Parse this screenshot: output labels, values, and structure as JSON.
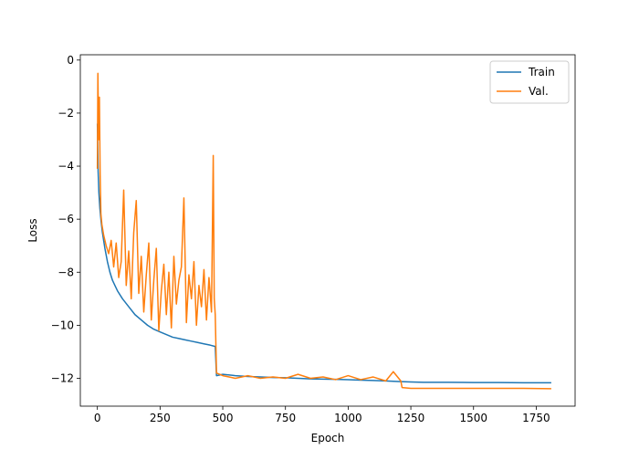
{
  "chart_data": {
    "type": "line",
    "title": "",
    "xlabel": "Epoch",
    "ylabel": "Loss",
    "xlim": [
      -68,
      1905
    ],
    "ylim": [
      -13.05,
      0.2
    ],
    "x_ticks": [
      0,
      250,
      500,
      750,
      1000,
      1250,
      1500,
      1750
    ],
    "y_ticks": [
      0,
      -2,
      -4,
      -6,
      -8,
      -10,
      -12
    ],
    "grid": false,
    "legend_position": "top-right",
    "series": [
      {
        "name": "Train",
        "color": "#1f77b4",
        "points": [
          [
            0,
            -2.4
          ],
          [
            3,
            -4.2
          ],
          [
            6,
            -5.0
          ],
          [
            10,
            -5.6
          ],
          [
            15,
            -6.1
          ],
          [
            20,
            -6.5
          ],
          [
            30,
            -7.1
          ],
          [
            40,
            -7.6
          ],
          [
            50,
            -8.0
          ],
          [
            60,
            -8.3
          ],
          [
            70,
            -8.5
          ],
          [
            80,
            -8.7
          ],
          [
            100,
            -9.0
          ],
          [
            125,
            -9.3
          ],
          [
            150,
            -9.6
          ],
          [
            175,
            -9.8
          ],
          [
            200,
            -10.0
          ],
          [
            225,
            -10.15
          ],
          [
            250,
            -10.25
          ],
          [
            275,
            -10.35
          ],
          [
            300,
            -10.45
          ],
          [
            325,
            -10.5
          ],
          [
            350,
            -10.55
          ],
          [
            375,
            -10.6
          ],
          [
            400,
            -10.65
          ],
          [
            425,
            -10.7
          ],
          [
            450,
            -10.75
          ],
          [
            470,
            -10.8
          ],
          [
            475,
            -11.9
          ],
          [
            500,
            -11.85
          ],
          [
            550,
            -11.9
          ],
          [
            600,
            -11.93
          ],
          [
            650,
            -11.95
          ],
          [
            700,
            -11.97
          ],
          [
            750,
            -11.98
          ],
          [
            800,
            -12.0
          ],
          [
            850,
            -12.02
          ],
          [
            900,
            -12.03
          ],
          [
            950,
            -12.04
          ],
          [
            1000,
            -12.05
          ],
          [
            1050,
            -12.07
          ],
          [
            1100,
            -12.08
          ],
          [
            1150,
            -12.1
          ],
          [
            1200,
            -12.12
          ],
          [
            1250,
            -12.14
          ],
          [
            1300,
            -12.15
          ],
          [
            1400,
            -12.15
          ],
          [
            1500,
            -12.16
          ],
          [
            1600,
            -12.16
          ],
          [
            1700,
            -12.17
          ],
          [
            1810,
            -12.17
          ]
        ]
      },
      {
        "name": "Val.",
        "color": "#ff7f0e",
        "points": [
          [
            0,
            -4.1
          ],
          [
            2,
            -0.5
          ],
          [
            5,
            -3.0
          ],
          [
            8,
            -1.4
          ],
          [
            11,
            -4.3
          ],
          [
            14,
            -5.8
          ],
          [
            18,
            -6.2
          ],
          [
            25,
            -6.6
          ],
          [
            35,
            -7.0
          ],
          [
            45,
            -7.3
          ],
          [
            55,
            -6.8
          ],
          [
            65,
            -7.8
          ],
          [
            75,
            -6.9
          ],
          [
            85,
            -8.2
          ],
          [
            95,
            -7.6
          ],
          [
            105,
            -4.9
          ],
          [
            115,
            -8.5
          ],
          [
            125,
            -7.2
          ],
          [
            135,
            -9.0
          ],
          [
            145,
            -6.5
          ],
          [
            155,
            -5.3
          ],
          [
            165,
            -8.8
          ],
          [
            175,
            -7.4
          ],
          [
            185,
            -9.5
          ],
          [
            195,
            -8.1
          ],
          [
            205,
            -6.9
          ],
          [
            215,
            -9.8
          ],
          [
            225,
            -8.3
          ],
          [
            235,
            -7.1
          ],
          [
            245,
            -10.2
          ],
          [
            255,
            -8.7
          ],
          [
            265,
            -7.7
          ],
          [
            275,
            -9.6
          ],
          [
            285,
            -8.0
          ],
          [
            295,
            -10.1
          ],
          [
            305,
            -7.4
          ],
          [
            315,
            -9.2
          ],
          [
            325,
            -8.3
          ],
          [
            335,
            -7.8
          ],
          [
            345,
            -5.2
          ],
          [
            355,
            -9.9
          ],
          [
            365,
            -8.1
          ],
          [
            375,
            -9.0
          ],
          [
            385,
            -7.6
          ],
          [
            395,
            -10.0
          ],
          [
            405,
            -8.5
          ],
          [
            415,
            -9.3
          ],
          [
            425,
            -7.9
          ],
          [
            435,
            -9.8
          ],
          [
            445,
            -8.2
          ],
          [
            455,
            -9.5
          ],
          [
            462,
            -3.6
          ],
          [
            466,
            -9.0
          ],
          [
            470,
            -9.6
          ],
          [
            475,
            -11.8
          ],
          [
            500,
            -11.9
          ],
          [
            525,
            -11.95
          ],
          [
            550,
            -12.0
          ],
          [
            600,
            -11.9
          ],
          [
            650,
            -12.0
          ],
          [
            700,
            -11.95
          ],
          [
            750,
            -12.0
          ],
          [
            800,
            -11.85
          ],
          [
            850,
            -12.0
          ],
          [
            900,
            -11.95
          ],
          [
            950,
            -12.05
          ],
          [
            1000,
            -11.9
          ],
          [
            1050,
            -12.05
          ],
          [
            1100,
            -11.95
          ],
          [
            1150,
            -12.1
          ],
          [
            1180,
            -11.75
          ],
          [
            1210,
            -12.1
          ],
          [
            1215,
            -12.35
          ],
          [
            1250,
            -12.38
          ],
          [
            1300,
            -12.38
          ],
          [
            1400,
            -12.38
          ],
          [
            1500,
            -12.38
          ],
          [
            1600,
            -12.38
          ],
          [
            1700,
            -12.38
          ],
          [
            1810,
            -12.39
          ]
        ]
      }
    ]
  }
}
